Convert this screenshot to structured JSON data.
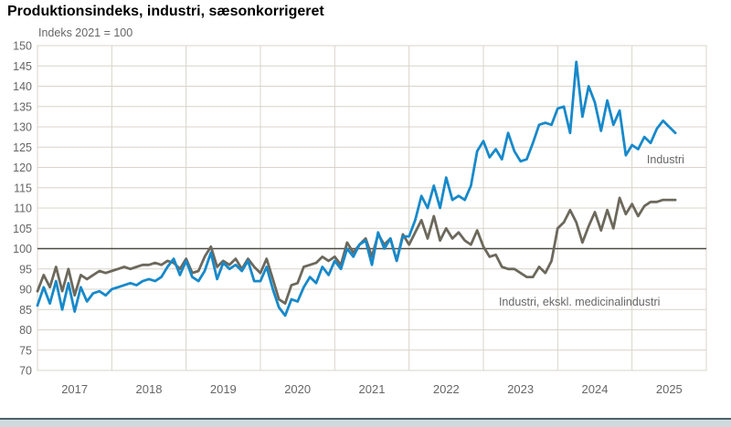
{
  "page": {
    "title": "Produktionsindeks, industri, sæsonkorrigeret"
  },
  "chart_data": {
    "type": "line",
    "title": "Produktionsindeks, industri, sæsonkorrigeret",
    "unit_label": "Indeks 2021 = 100",
    "x_years": [
      "2017",
      "2018",
      "2019",
      "2020",
      "2021",
      "2022",
      "2023",
      "2024",
      "2025"
    ],
    "x_axis_months_total": 108,
    "data_start": "2017-01",
    "data_end": "2025-08",
    "ylim": [
      70,
      150
    ],
    "y_tick_step": 5,
    "reference_value": 100,
    "grid": true,
    "legend_position": "inline-annotations",
    "series": [
      {
        "name": "Industri, ekskl. medicinalindustri",
        "color": "#6c685c",
        "values": [
          89.5,
          93.5,
          90.5,
          95.5,
          89.5,
          95,
          88.5,
          93.5,
          92.5,
          93.5,
          94.5,
          94,
          94.5,
          95,
          95.5,
          95,
          95.5,
          96,
          96,
          96.5,
          96,
          97,
          96.5,
          95,
          97.5,
          94,
          94.5,
          98,
          100.5,
          95.5,
          97,
          96,
          97.5,
          95,
          97.5,
          95.5,
          94,
          97.5,
          92.5,
          87.5,
          86.5,
          91,
          91.5,
          95.5,
          96,
          96.5,
          98,
          97,
          98,
          96,
          101.5,
          99,
          101,
          102.5,
          98,
          103.5,
          101,
          102.5,
          97,
          103.5,
          101,
          104,
          107,
          102.5,
          108,
          102,
          105,
          102.5,
          104,
          102,
          101,
          104.5,
          100.5,
          98,
          98.5,
          95.5,
          95,
          95,
          94,
          93,
          93,
          95.5,
          94,
          97,
          105,
          106.5,
          109.5,
          106.5,
          101.5,
          105.5,
          109,
          104.5,
          109.5,
          105,
          112.5,
          108.5,
          111,
          108,
          110.5,
          111.5,
          111.5,
          112,
          112,
          112
        ]
      },
      {
        "name": "Industri",
        "color": "#1789ca",
        "values": [
          86,
          90.5,
          86.5,
          92,
          85,
          91.5,
          84.5,
          90.5,
          87,
          89,
          89.5,
          88.5,
          90,
          90.5,
          91,
          91.5,
          91,
          92,
          92.5,
          92,
          93,
          95.5,
          97.5,
          93.5,
          97,
          93,
          92,
          94.5,
          99,
          92.5,
          96.5,
          95,
          96,
          94.5,
          97,
          92,
          92,
          95.5,
          90,
          85.5,
          83.5,
          87.5,
          87,
          90.5,
          93,
          91.5,
          95.5,
          93.5,
          97,
          95,
          100,
          98,
          101,
          102,
          96,
          104,
          100,
          102.5,
          97,
          103,
          103,
          107,
          113,
          110,
          115.5,
          110,
          117.5,
          112,
          113,
          112,
          115.5,
          124,
          126.5,
          122.5,
          124.5,
          122,
          128.5,
          124,
          121.5,
          122,
          126,
          130.5,
          131,
          130.5,
          134.5,
          135,
          128.5,
          146,
          132.5,
          140,
          136,
          129,
          136.5,
          130.5,
          134,
          123,
          125.5,
          124.5,
          127.5,
          126,
          129.5,
          131.5,
          130,
          128.5
        ]
      }
    ],
    "annotations": [
      {
        "text": "Industri",
        "month_index": 98.4,
        "value": 121.0,
        "anchor": "start",
        "color": "#666666"
      },
      {
        "text": "Industri, ekskl. medicinalindustri",
        "month_index": 74.5,
        "value": 86.0,
        "anchor": "start",
        "color": "#666666"
      }
    ],
    "colors": {
      "grid": "#d8d4c8",
      "reference_line": "#4c4a42",
      "axis_text": "#666666"
    }
  },
  "footer": {
    "accent_dark": "#4c616b",
    "accent_light": "#cfdade"
  }
}
